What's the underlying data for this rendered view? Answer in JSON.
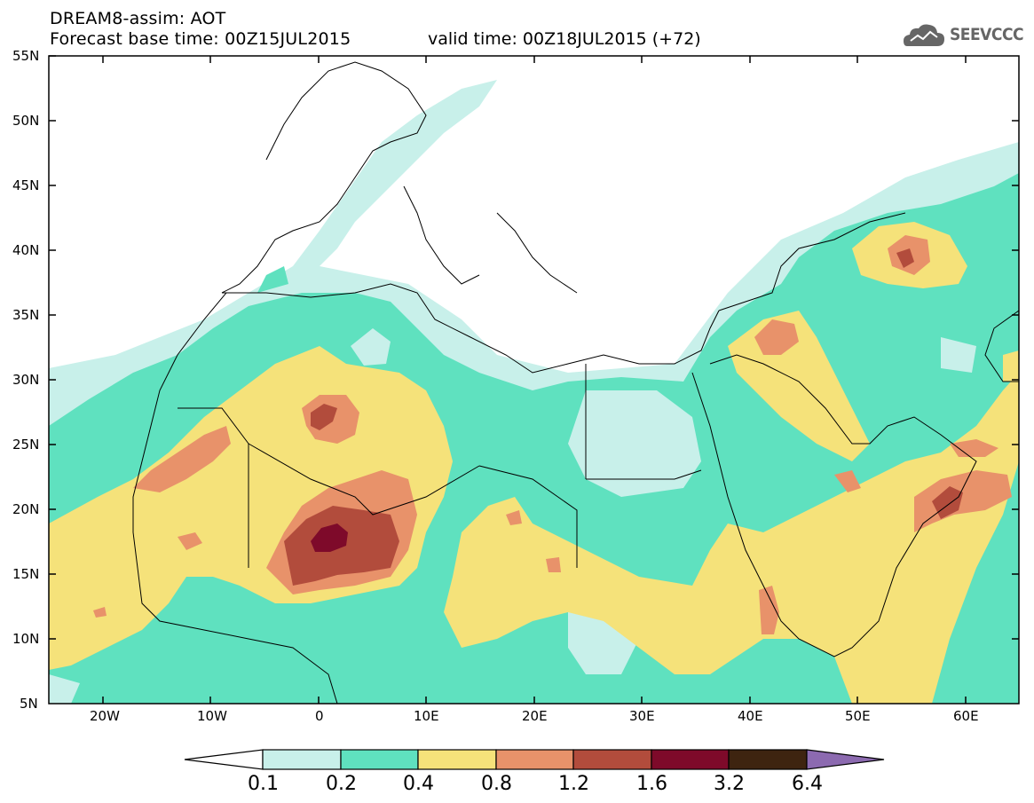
{
  "header": {
    "title_line1": "DREAM8-assim: AOT",
    "title_line2": "Forecast base time: 00Z15JUL2015",
    "valid_time": "valid time: 00Z18JUL2015 (+72)",
    "logo_text": "SEEVCCC"
  },
  "axes": {
    "lat_labels": [
      "55N",
      "50N",
      "45N",
      "40N",
      "35N",
      "30N",
      "25N",
      "20N",
      "15N",
      "10N",
      "5N"
    ],
    "lon_labels": [
      "20W",
      "10W",
      "0",
      "10E",
      "20E",
      "30E",
      "40E",
      "50E",
      "60E"
    ]
  },
  "legend": {
    "labels": [
      "0.1",
      "0.2",
      "0.4",
      "0.8",
      "1.2",
      "1.6",
      "3.2",
      "6.4"
    ],
    "colors": [
      "#ffffff",
      "#c8f0ea",
      "#5fe1bf",
      "#f5e27a",
      "#e8926a",
      "#b24c3c",
      "#7e0a2a",
      "#3e2410",
      "#8c6ab0"
    ]
  },
  "map": {
    "colors": {
      "c01": "#c8f0ea",
      "c02": "#5fe1bf",
      "c04": "#f5e27a",
      "c08": "#e8926a",
      "c12": "#b24c3c",
      "c16": "#7e0a2a"
    }
  }
}
